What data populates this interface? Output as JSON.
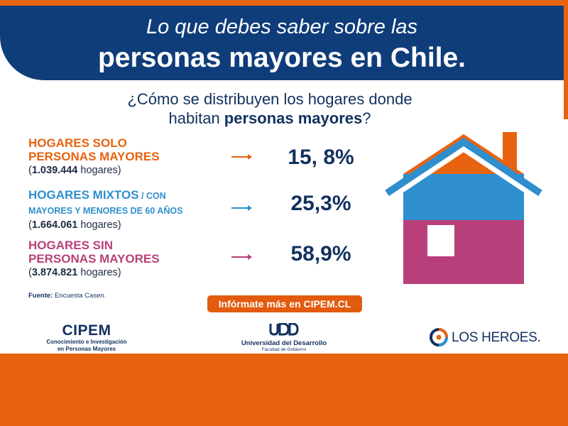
{
  "banner": {
    "line1": "Lo que debes saber sobre las",
    "line2": "personas mayores en Chile."
  },
  "question": {
    "part1": "¿Cómo se distribuyen los hogares donde",
    "part2": "habitan ",
    "bold": "personas mayores",
    "part3": "?"
  },
  "rows": [
    {
      "title_line1": "HOGARES SOLO",
      "title_line2": "PERSONAS MAYORES",
      "count_open": "(",
      "count_value": "1.039.444",
      "count_rest": " hogares)",
      "percent": "15, 8%",
      "color": "#e8630f"
    },
    {
      "title_line1": "HOGARES MIXTOS",
      "title_line1_small": " / CON",
      "title_line2": "MAYORES Y MENORES DE 60 AÑOS",
      "count_open": "(",
      "count_value": "1.664.061",
      "count_rest": " hogares)",
      "percent": "25,3%",
      "color": "#2f8fce"
    },
    {
      "title_line1": "HOGARES SIN",
      "title_line2": "PERSONAS MAYORES",
      "count_open": "(",
      "count_value": "3.874.821",
      "count_rest": " hogares)",
      "percent": "58,9%",
      "color": "#b8407a"
    }
  ],
  "source": {
    "label": "Fuente:",
    "text": " Encuesta Casen."
  },
  "cta": {
    "label": "Infórmate más en CIPEM.CL"
  },
  "logos": {
    "cipem": {
      "name": "CIPEM",
      "line1": "Conocimiento e Investigación",
      "line2": "en Personas Mayores"
    },
    "udd": {
      "mark": "UDD",
      "name": "Universidad del Desarrollo",
      "sub": "Facultad de Gobierno"
    },
    "losheroes": {
      "name": "LOS HEROES."
    }
  },
  "colors": {
    "navy": "#0f3d7a",
    "orange": "#e8630f",
    "blue": "#2f8fce",
    "magenta": "#b8407a"
  }
}
